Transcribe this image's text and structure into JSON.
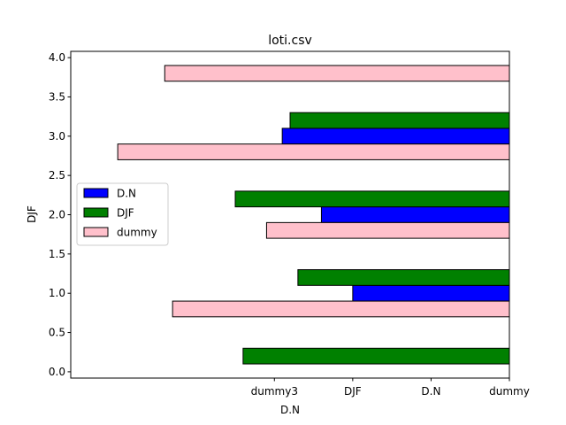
{
  "chart_data": {
    "type": "bar",
    "orientation": "horizontal",
    "title": "loti.csv",
    "xlabel": "D.N",
    "ylabel": "DJF",
    "ylim": [
      -0.08,
      4.08
    ],
    "y_ticks": [
      0.0,
      0.5,
      1.0,
      1.5,
      2.0,
      2.5,
      3.0,
      3.5,
      4.0
    ],
    "y_tick_labels": [
      "0.0",
      "0.5",
      "1.0",
      "1.5",
      "2.0",
      "2.5",
      "3.0",
      "3.5",
      "4.0"
    ],
    "xlim": [
      0,
      5.6
    ],
    "x_ticks": [
      0,
      1,
      2,
      3
    ],
    "x_tick_labels": [
      "dummy",
      "D.N",
      "DJF",
      "dummy3"
    ],
    "x_direction": "reversed",
    "bar_height": 0.2,
    "series": [
      {
        "name": "D.N",
        "color": "#0000ff",
        "points": [
          {
            "y": 1.0,
            "value": 2.0
          },
          {
            "y": 2.0,
            "value": 2.4
          },
          {
            "y": 3.0,
            "value": 2.9
          }
        ]
      },
      {
        "name": "DJF",
        "color": "#008000",
        "points": [
          {
            "y": 0.2,
            "value": 3.4
          },
          {
            "y": 1.2,
            "value": 2.7
          },
          {
            "y": 2.2,
            "value": 3.5
          },
          {
            "y": 3.2,
            "value": 2.8
          }
        ]
      },
      {
        "name": "dummy",
        "color": "#ffc0cb",
        "points": [
          {
            "y": 0.8,
            "value": 4.3
          },
          {
            "y": 1.8,
            "value": 3.1
          },
          {
            "y": 2.8,
            "value": 5.0
          },
          {
            "y": 3.8,
            "value": 4.4
          }
        ]
      }
    ],
    "legend_position": "center-left",
    "grid": false
  }
}
